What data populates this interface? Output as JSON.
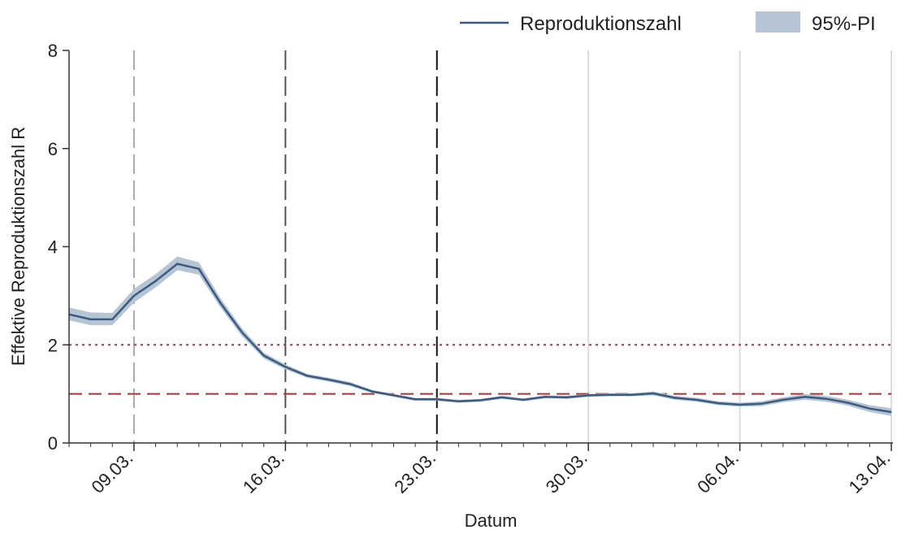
{
  "chart_data": {
    "type": "line",
    "xlabel": "Datum",
    "ylabel": "Effektive Reproduktionszahl R",
    "ylim": [
      0,
      8
    ],
    "y_ticks": [
      0,
      2,
      4,
      6,
      8
    ],
    "x_ticks": [
      {
        "day": 4,
        "label": "09.03."
      },
      {
        "day": 11,
        "label": "16.03."
      },
      {
        "day": 18,
        "label": "23.03."
      },
      {
        "day": 25,
        "label": "30.03."
      },
      {
        "day": 32,
        "label": "06.04."
      },
      {
        "day": 39,
        "label": "13.04."
      }
    ],
    "x_range_day": [
      1,
      39
    ],
    "legend": {
      "position": "top-right",
      "line_label": "Reproduktionszahl",
      "band_label": "95%-PI"
    },
    "series": [
      {
        "name": "Reproduktionszahl",
        "color": "#3b5b80",
        "x_day": [
          1,
          2,
          3,
          4,
          5,
          6,
          7,
          8,
          9,
          10,
          11,
          12,
          13,
          14,
          15,
          16,
          17,
          18,
          19,
          20,
          21,
          22,
          23,
          24,
          25,
          26,
          27,
          28,
          29,
          30,
          31,
          32,
          33,
          34,
          35,
          36,
          37,
          38,
          39
        ],
        "values": [
          2.62,
          2.52,
          2.52,
          3.0,
          3.3,
          3.65,
          3.55,
          2.85,
          2.25,
          1.78,
          1.55,
          1.37,
          1.29,
          1.2,
          1.05,
          0.97,
          0.89,
          0.89,
          0.85,
          0.87,
          0.93,
          0.88,
          0.94,
          0.93,
          0.97,
          0.98,
          0.98,
          1.01,
          0.92,
          0.88,
          0.81,
          0.78,
          0.8,
          0.88,
          0.94,
          0.9,
          0.82,
          0.7,
          0.63
        ],
        "lower": [
          2.5,
          2.4,
          2.4,
          2.86,
          3.17,
          3.52,
          3.43,
          2.76,
          2.17,
          1.72,
          1.5,
          1.33,
          1.25,
          1.16,
          1.02,
          0.94,
          0.86,
          0.86,
          0.82,
          0.84,
          0.9,
          0.85,
          0.91,
          0.9,
          0.94,
          0.95,
          0.95,
          0.97,
          0.88,
          0.84,
          0.77,
          0.74,
          0.75,
          0.83,
          0.88,
          0.84,
          0.76,
          0.63,
          0.55
        ],
        "upper": [
          2.76,
          2.66,
          2.65,
          3.14,
          3.44,
          3.8,
          3.68,
          2.95,
          2.33,
          1.84,
          1.6,
          1.41,
          1.33,
          1.24,
          1.08,
          1.0,
          0.92,
          0.92,
          0.88,
          0.9,
          0.96,
          0.91,
          0.97,
          0.96,
          1.0,
          1.01,
          1.01,
          1.05,
          0.96,
          0.92,
          0.85,
          0.82,
          0.85,
          0.93,
          1.0,
          0.96,
          0.88,
          0.77,
          0.71
        ]
      }
    ],
    "band_color": "#b6c5d4",
    "reference_lines": [
      {
        "y": 2,
        "style": "dotted",
        "color": "#a8353a"
      },
      {
        "y": 1,
        "style": "dashed",
        "color": "#a8353a"
      }
    ],
    "vertical_lines": [
      {
        "day": 4,
        "style": "dashed",
        "color": "#aaaaaa"
      },
      {
        "day": 11,
        "style": "dashed",
        "color": "#555555"
      },
      {
        "day": 18,
        "style": "dashed",
        "color": "#111111"
      },
      {
        "day": 25,
        "style": "solid",
        "color": "#dddddd"
      },
      {
        "day": 32,
        "style": "solid",
        "color": "#dddddd"
      },
      {
        "day": 39,
        "style": "solid",
        "color": "#dddddd"
      }
    ]
  }
}
